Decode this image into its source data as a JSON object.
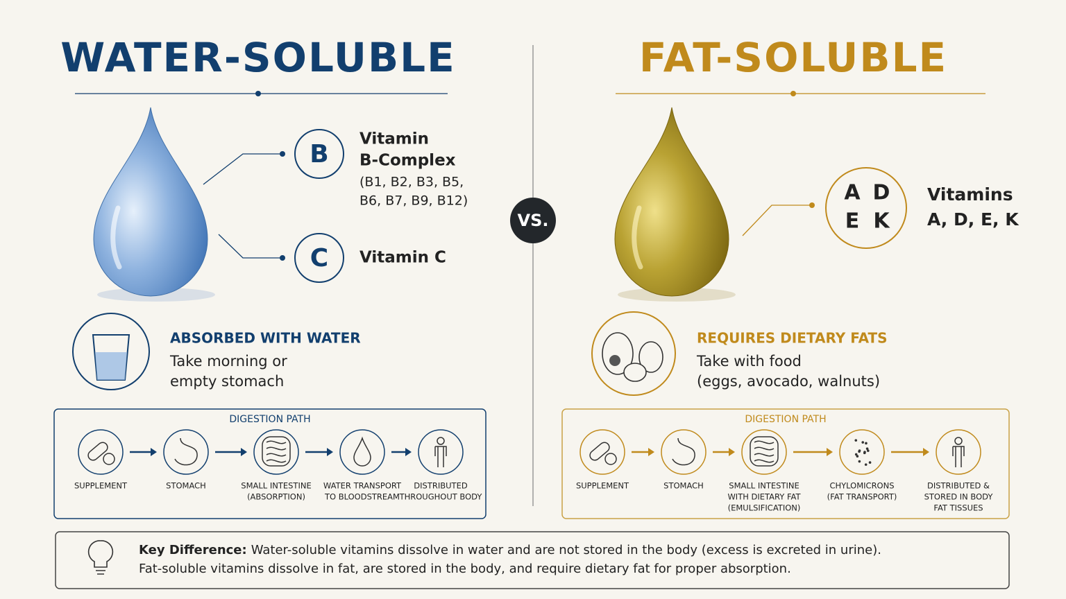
{
  "vs": "VS.",
  "water": {
    "title": "WATER-SOLUBLE",
    "vitamins": [
      {
        "letter": "B",
        "name_lines": [
          "Vitamin",
          "B-Complex"
        ],
        "detail_lines": [
          "(B1, B2, B3, B5,",
          "B6, B7, B9, B12)"
        ]
      },
      {
        "letter": "C",
        "name_lines": [
          "Vitamin C"
        ]
      }
    ],
    "absorption": {
      "heading": "ABSORBED WITH WATER",
      "lines": [
        "Take morning or",
        "empty stomach"
      ]
    },
    "digestion": {
      "title": "DIGESTION PATH",
      "steps": [
        [
          "SUPPLEMENT"
        ],
        [
          "STOMACH"
        ],
        [
          "SMALL INTESTINE",
          "(ABSORPTION)"
        ],
        [
          "WATER TRANSPORT",
          "TO BLOODSTREAM"
        ],
        [
          "DISTRIBUTED",
          "THROUGHOUT BODY"
        ]
      ]
    }
  },
  "fat": {
    "title": "FAT-SOLUBLE",
    "vitamins": [
      {
        "letters": [
          "A",
          "D",
          "E",
          "K"
        ],
        "name_lines": [
          "Vitamins",
          "A, D, E, K"
        ]
      }
    ],
    "absorption": {
      "heading": "REQUIRES DIETARY FATS",
      "lines": [
        "Take with food",
        "(eggs, avocado, walnuts)"
      ]
    },
    "digestion": {
      "title": "DIGESTION PATH",
      "steps": [
        [
          "SUPPLEMENT"
        ],
        [
          "STOMACH"
        ],
        [
          "SMALL INTESTINE",
          "WITH DIETARY FAT",
          "(EMULSIFICATION)"
        ],
        [
          "CHYLOMICRONS",
          "(FAT TRANSPORT)"
        ],
        [
          "DISTRIBUTED &",
          "STORED IN BODY",
          "FAT TISSUES"
        ]
      ]
    }
  },
  "key_difference": {
    "label": "Key Difference:",
    "lines": [
      "Water-soluble vitamins dissolve in water and are not stored in the body (excess is excreted in urine).",
      "Fat-soluble vitamins dissolve in fat, are stored in the body, and require dietary fat for proper absorption."
    ]
  }
}
